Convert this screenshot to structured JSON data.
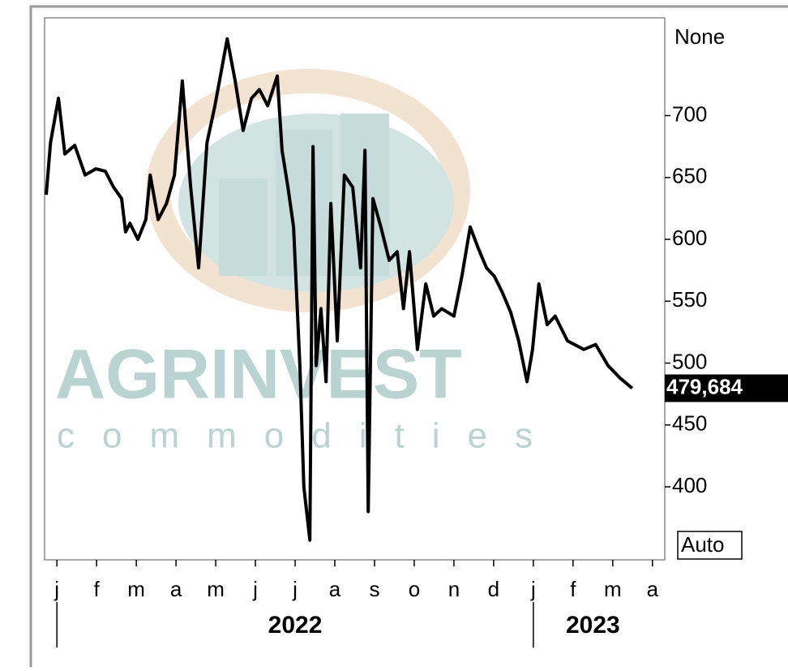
{
  "chart_data": {
    "type": "line",
    "watermark": {
      "brand": "AGRINVEST",
      "tagline": "commodities"
    },
    "top_label": "None",
    "bottom_label": "Auto",
    "series": [
      {
        "color": "#000000",
        "x": [
          -0.27,
          -0.16,
          0.04,
          0.2,
          0.45,
          0.71,
          0.98,
          1.22,
          1.43,
          1.63,
          1.73,
          1.84,
          2.04,
          2.24,
          2.35,
          2.55,
          2.76,
          2.96,
          3.16,
          3.37,
          3.57,
          3.78,
          3.98,
          4.29,
          4.49,
          4.69,
          4.9,
          5.1,
          5.31,
          5.55,
          5.67,
          5.82,
          5.96,
          6.12,
          6.22,
          6.37,
          6.45,
          6.53,
          6.65,
          6.78,
          6.9,
          7.06,
          7.24,
          7.45,
          7.65,
          7.76,
          7.84,
          7.96,
          8.16,
          8.37,
          8.57,
          8.73,
          8.88,
          9.08,
          9.29,
          9.49,
          9.69,
          10.0,
          10.2,
          10.41,
          10.61,
          10.82,
          11.02,
          11.22,
          11.43,
          11.63,
          11.84,
          11.98,
          12.14,
          12.35,
          12.55,
          12.86,
          13.27,
          13.57,
          13.88,
          14.18,
          14.49
        ],
        "values": [
          636,
          678,
          714,
          669,
          676,
          652,
          657,
          655,
          642,
          633,
          606,
          613,
          600,
          616,
          652,
          616,
          629,
          652,
          728,
          642,
          577,
          678,
          708,
          762,
          728,
          688,
          714,
          721,
          708,
          732,
          672,
          642,
          610,
          498,
          400,
          357,
          675,
          498,
          544,
          485,
          629,
          518,
          652,
          642,
          577,
          672,
          380,
          633,
          610,
          583,
          590,
          544,
          590,
          511,
          564,
          538,
          544,
          538,
          570,
          610,
          593,
          577,
          570,
          557,
          541,
          518,
          485,
          511,
          564,
          531,
          538,
          518,
          511,
          515,
          498,
          488,
          479.684
        ],
        "last_value_label": "479,684"
      }
    ],
    "xlim": [
      -0.31,
      15.31
    ],
    "xticks": [
      {
        "value": 0,
        "label": "j"
      },
      {
        "value": 1,
        "label": "f"
      },
      {
        "value": 2,
        "label": "m"
      },
      {
        "value": 3,
        "label": "a"
      },
      {
        "value": 4,
        "label": "m"
      },
      {
        "value": 5,
        "label": "j"
      },
      {
        "value": 6,
        "label": "j"
      },
      {
        "value": 7,
        "label": "a"
      },
      {
        "value": 8,
        "label": "s"
      },
      {
        "value": 9,
        "label": "o"
      },
      {
        "value": 10,
        "label": "n"
      },
      {
        "value": 11,
        "label": "d"
      },
      {
        "value": 12,
        "label": "j"
      },
      {
        "value": 13,
        "label": "f"
      },
      {
        "value": 14,
        "label": "m"
      },
      {
        "value": 15,
        "label": "a"
      }
    ],
    "years": [
      {
        "value": 0,
        "end": 12,
        "label": "2022"
      },
      {
        "value": 12,
        "end": 15,
        "label": "2023"
      }
    ],
    "ylim": [
      341,
      779
    ],
    "yticks": [
      400,
      450,
      500,
      550,
      600,
      650,
      700
    ]
  }
}
